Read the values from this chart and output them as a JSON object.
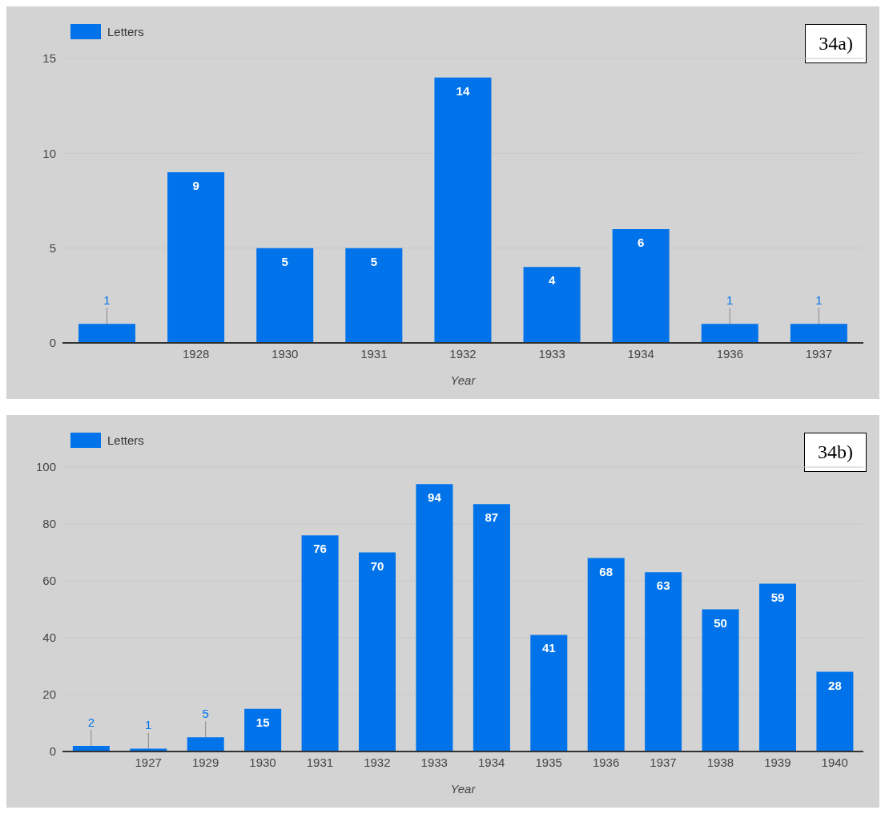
{
  "chart_data": [
    {
      "type": "bar",
      "xlabel": "Year",
      "categories": [
        null,
        "1928",
        "1930",
        "1931",
        "1932",
        "1933",
        "1934",
        "1936",
        "1937"
      ],
      "series": [
        {
          "name": "Letters",
          "color": "#0073ea",
          "values": [
            1,
            9,
            5,
            5,
            14,
            4,
            6,
            1,
            1
          ]
        }
      ],
      "ylim": [
        0,
        15
      ],
      "yticks": [
        0,
        5,
        10,
        15
      ],
      "grid": "y",
      "legend": "top left",
      "data_labels": true,
      "annotations": [
        "34a)"
      ]
    },
    {
      "type": "bar",
      "xlabel": "Year",
      "categories": [
        null,
        "1927",
        "1929",
        "1930",
        "1931",
        "1932",
        "1933",
        "1934",
        "1935",
        "1936",
        "1937",
        "1938",
        "1939",
        "1940"
      ],
      "series": [
        {
          "name": "Letters",
          "color": "#0073ea",
          "values": [
            2,
            1,
            5,
            15,
            76,
            70,
            94,
            87,
            41,
            68,
            63,
            50,
            59,
            28
          ]
        }
      ],
      "ylim": [
        0,
        100
      ],
      "yticks": [
        0,
        20,
        40,
        60,
        80,
        100
      ],
      "grid": "y",
      "legend": "top left",
      "data_labels": true,
      "annotations": [
        "34b)"
      ]
    }
  ]
}
